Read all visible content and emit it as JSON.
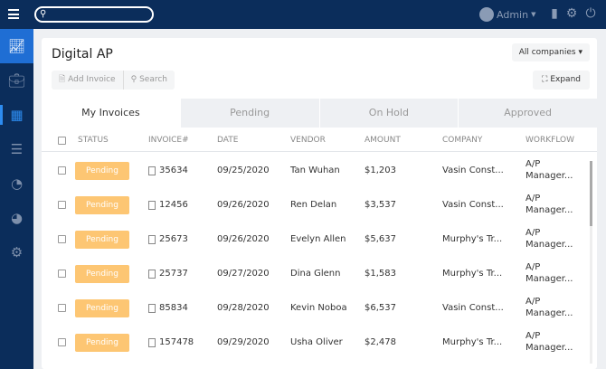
{
  "topbar": {
    "user": "Admin",
    "icons": [
      "menu-icon",
      "search-icon",
      "user-icon",
      "book-icon",
      "gear-icon",
      "power-icon"
    ]
  },
  "sidebar": {
    "items": [
      "chart-icon",
      "briefcase-icon",
      "building-icon",
      "checklist-icon",
      "gauge-icon",
      "pie-chart-icon",
      "gear-icon"
    ]
  },
  "page": {
    "title": "Digital AP",
    "company_filter": "All companies",
    "add_invoice": "Add Invoice",
    "search": "Search",
    "expand": "Expand"
  },
  "tabs": [
    "My Invoices",
    "Pending",
    "On Hold",
    "Approved"
  ],
  "columns": [
    "STATUS",
    "INVOICE#",
    "DATE",
    "VENDOR",
    "AMOUNT",
    "COMPANY",
    "WORKFLOW"
  ],
  "rows": [
    {
      "status": "Pending",
      "invoice": "35634",
      "date": "09/25/2020",
      "vendor": "Tan Wuhan",
      "amount": "$1,203",
      "company": "Vasin Const...",
      "wf1": "A/P",
      "wf2": "Manager..."
    },
    {
      "status": "Pending",
      "invoice": "12456",
      "date": "09/26/2020",
      "vendor": "Ren Delan",
      "amount": "$3,537",
      "company": "Vasin Const...",
      "wf1": "A/P",
      "wf2": "Manager..."
    },
    {
      "status": "Pending",
      "invoice": "25673",
      "date": "09/26/2020",
      "vendor": "Evelyn Allen",
      "amount": "$5,637",
      "company": "Murphy's Tr...",
      "wf1": "A/P",
      "wf2": "Manager..."
    },
    {
      "status": "Pending",
      "invoice": "25737",
      "date": "09/27/2020",
      "vendor": "Dina Glenn",
      "amount": "$1,583",
      "company": "Murphy's Tr...",
      "wf1": "A/P",
      "wf2": "Manager..."
    },
    {
      "status": "Pending",
      "invoice": "85834",
      "date": "09/28/2020",
      "vendor": "Kevin Noboa",
      "amount": "$6,537",
      "company": "Vasin Const...",
      "wf1": "A/P",
      "wf2": "Manager..."
    },
    {
      "status": "Pending",
      "invoice": "157478",
      "date": "09/29/2020",
      "vendor": "Usha Oliver",
      "amount": "$2,478",
      "company": "Murphy's Tr...",
      "wf1": "A/P",
      "wf2": "Manager..."
    }
  ],
  "colors": {
    "navy": "#0b2d5b",
    "active": "#1f6ed4",
    "pending": "#fdc673"
  }
}
